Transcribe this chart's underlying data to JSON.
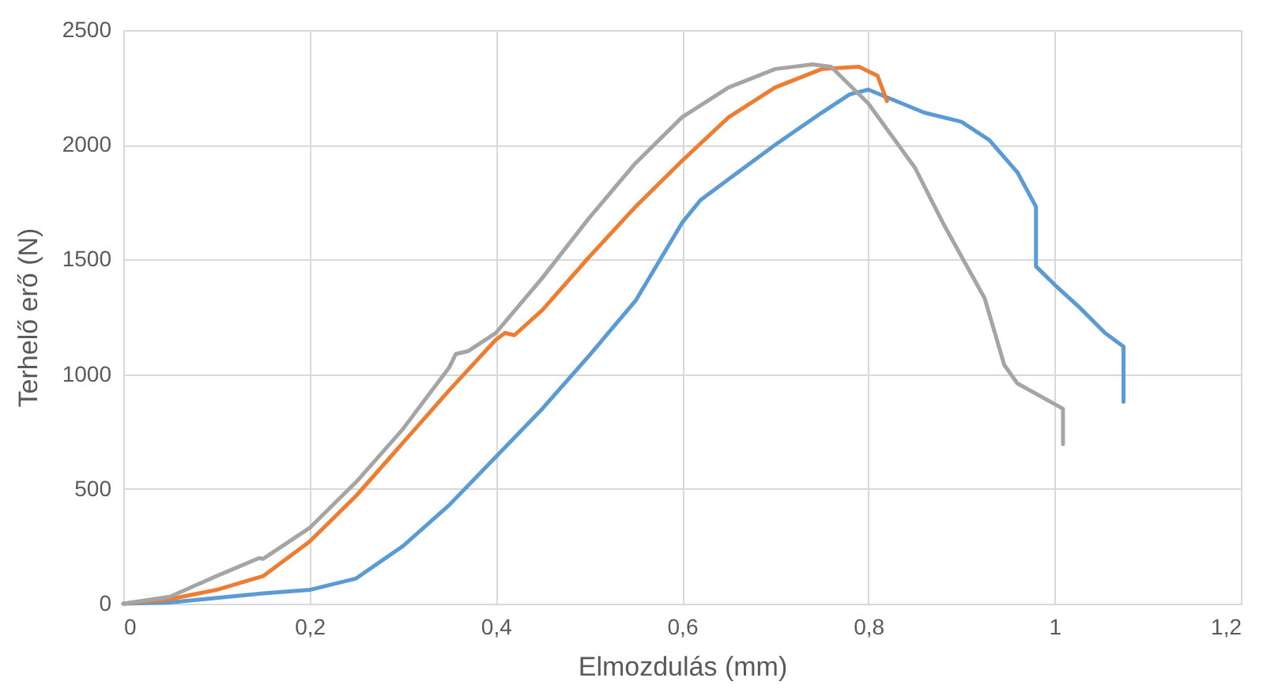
{
  "chart_data": {
    "type": "line",
    "xlabel": "Elmozdulás (mm)",
    "ylabel": "Terhelő erő (N)",
    "xlim": [
      0,
      1.2
    ],
    "ylim": [
      0,
      2500
    ],
    "xticks": [
      0,
      {
        "value": 0.2,
        "label": "0,2"
      },
      {
        "value": 0.4,
        "label": "0,4"
      },
      {
        "value": 0.6,
        "label": "0,6"
      },
      {
        "value": 0.8,
        "label": "0,8"
      },
      1,
      {
        "value": 1.2,
        "label": "1,2"
      }
    ],
    "yticks": [
      0,
      500,
      1000,
      1500,
      2000,
      2500
    ],
    "grid": true,
    "marker": "none",
    "line_style": "solid",
    "series": [
      {
        "color": "#5b9bd5",
        "x": [
          0,
          0.05,
          0.1,
          0.15,
          0.2,
          0.25,
          0.3,
          0.35,
          0.4,
          0.45,
          0.5,
          0.55,
          0.6,
          0.62,
          0.65,
          0.7,
          0.75,
          0.78,
          0.8,
          0.83,
          0.86,
          0.9,
          0.93,
          0.96,
          0.98,
          0.98,
          1.0,
          1.027,
          1.054,
          1.074,
          1.074
        ],
        "values": [
          0,
          5,
          25,
          45,
          60,
          110,
          250,
          430,
          640,
          850,
          1080,
          1320,
          1660,
          1760,
          1850,
          2000,
          2140,
          2220,
          2240,
          2190,
          2140,
          2100,
          2020,
          1880,
          1730,
          1470,
          1390,
          1290,
          1180,
          1120,
          880
        ]
      },
      {
        "color": "#ed7d31",
        "x": [
          0,
          0.05,
          0.1,
          0.15,
          0.2,
          0.25,
          0.3,
          0.35,
          0.4,
          0.41,
          0.42,
          0.45,
          0.5,
          0.55,
          0.6,
          0.65,
          0.7,
          0.75,
          0.79,
          0.81,
          0.82
        ],
        "values": [
          0,
          20,
          60,
          120,
          270,
          470,
          700,
          930,
          1150,
          1180,
          1170,
          1280,
          1510,
          1730,
          1930,
          2120,
          2250,
          2330,
          2340,
          2300,
          2190
        ]
      },
      {
        "color": "#a5a5a5",
        "x": [
          0,
          0.05,
          0.1,
          0.146,
          0.15,
          0.2,
          0.25,
          0.3,
          0.35,
          0.357,
          0.37,
          0.4,
          0.45,
          0.5,
          0.55,
          0.6,
          0.65,
          0.7,
          0.74,
          0.76,
          0.8,
          0.85,
          0.88,
          0.925,
          0.946,
          0.96,
          1.0,
          1.009,
          1.009
        ],
        "values": [
          0,
          30,
          120,
          199,
          195,
          330,
          530,
          760,
          1030,
          1088,
          1100,
          1180,
          1420,
          1680,
          1920,
          2120,
          2250,
          2330,
          2350,
          2340,
          2180,
          1900,
          1660,
          1330,
          1040,
          960,
          870,
          849,
          696
        ]
      }
    ]
  }
}
